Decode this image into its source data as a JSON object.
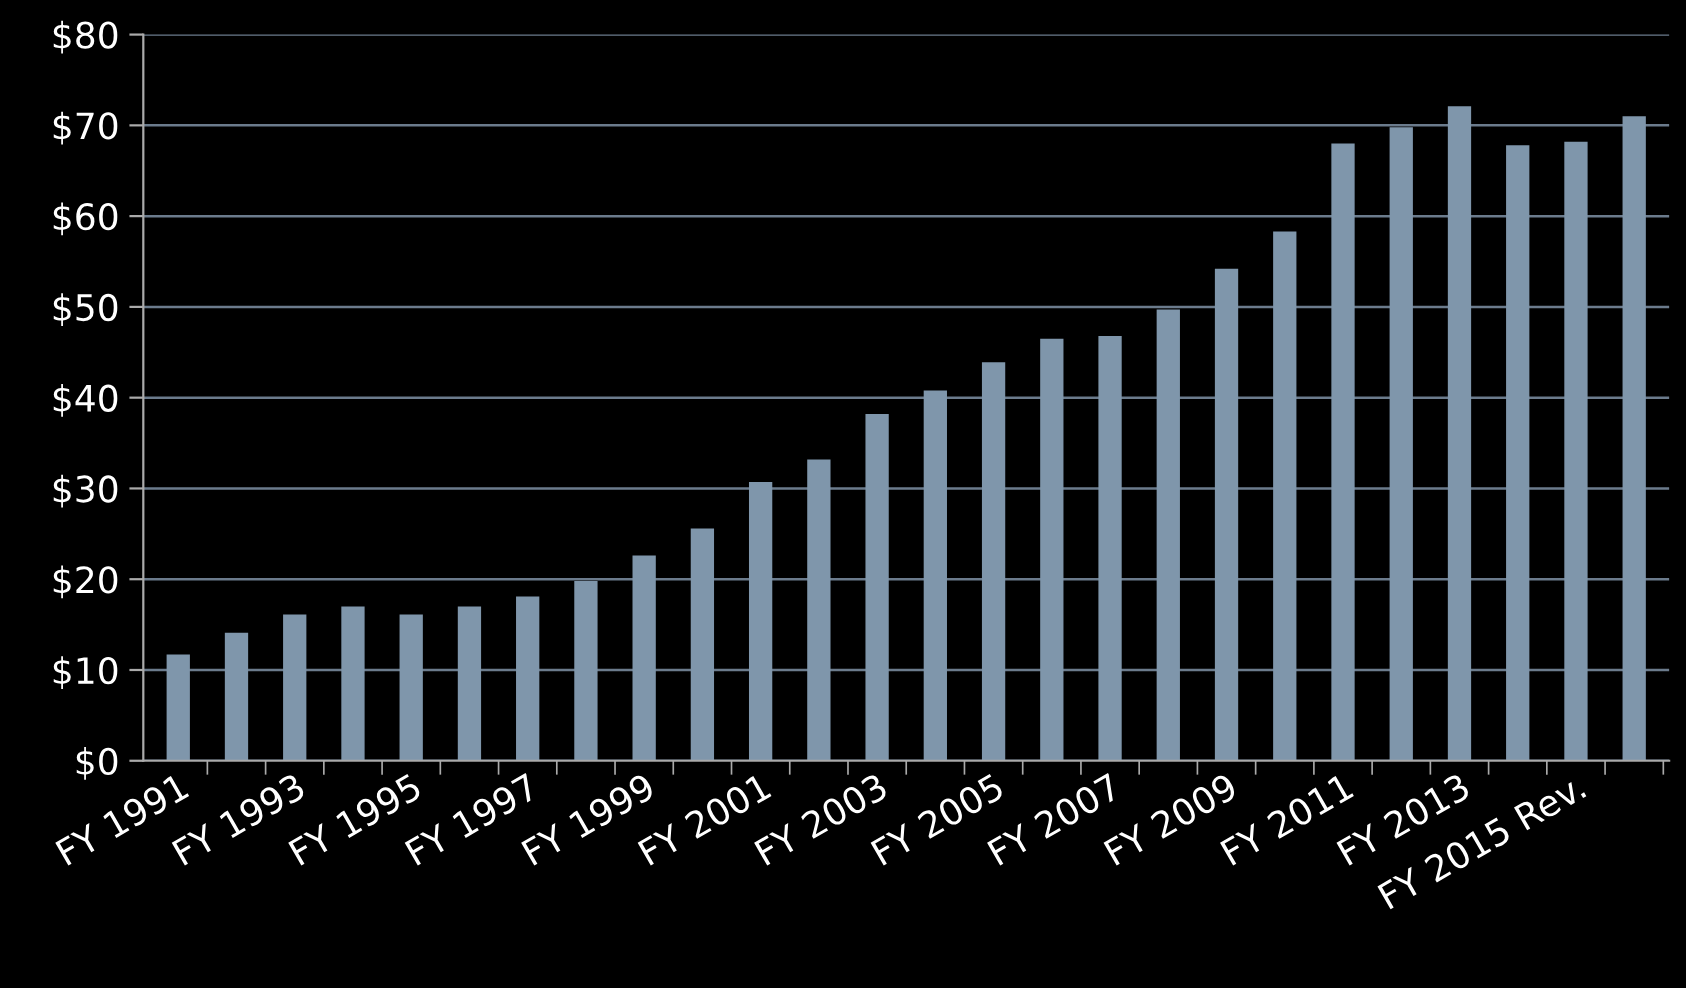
{
  "chart_data": {
    "type": "bar",
    "categories": [
      "FY 1991",
      null,
      "FY 1993",
      null,
      "FY 1995",
      null,
      "FY 1997",
      null,
      "FY 1999",
      null,
      "FY 2001",
      null,
      "FY 2003",
      null,
      "FY 2005",
      null,
      "FY 2007",
      null,
      "FY 2009",
      null,
      "FY 2011",
      null,
      "FY 2013",
      null,
      "FY 2015 Rev.",
      null
    ],
    "values": [
      11.7,
      14.1,
      16.1,
      17.0,
      16.1,
      17.0,
      18.1,
      19.8,
      22.6,
      25.6,
      30.7,
      33.2,
      38.2,
      40.8,
      43.9,
      46.5,
      46.8,
      49.7,
      54.2,
      58.3,
      68.0,
      69.8,
      72.1,
      67.8,
      68.2,
      71.0
    ],
    "color": "#7f96ab",
    "ylim": [
      0,
      80
    ],
    "yticks": [
      {
        "value": 0,
        "label": "$0"
      },
      {
        "value": 10,
        "label": "$10"
      },
      {
        "value": 20,
        "label": "$20"
      },
      {
        "value": 30,
        "label": "$30"
      },
      {
        "value": 40,
        "label": "$40"
      },
      {
        "value": 50,
        "label": "$50"
      },
      {
        "value": 60,
        "label": "$60"
      },
      {
        "value": 70,
        "label": "$70"
      },
      {
        "value": 80,
        "label": "$80"
      }
    ],
    "grid": "y"
  }
}
